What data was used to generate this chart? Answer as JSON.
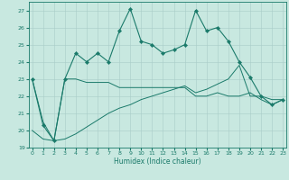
{
  "xlabel": "Humidex (Indice chaleur)",
  "x": [
    0,
    1,
    2,
    3,
    4,
    5,
    6,
    7,
    8,
    9,
    10,
    11,
    12,
    13,
    14,
    15,
    16,
    17,
    18,
    19,
    20,
    21,
    22,
    23
  ],
  "line1": [
    23,
    20.3,
    19.4,
    23,
    24.5,
    24,
    24.5,
    24,
    25.8,
    27.1,
    25.2,
    25,
    24.5,
    24.7,
    25,
    27,
    25.8,
    26,
    25.2,
    24,
    23.1,
    22,
    21.5,
    21.8
  ],
  "line2": [
    23,
    20.5,
    19.4,
    23,
    23,
    22.8,
    22.8,
    22.8,
    22.5,
    22.5,
    22.5,
    22.5,
    22.5,
    22.5,
    22.5,
    22,
    22,
    22.2,
    22,
    22,
    22.2,
    21.8,
    21.5,
    21.8
  ],
  "line3": [
    20,
    19.5,
    19.4,
    19.5,
    19.8,
    20.2,
    20.6,
    21,
    21.3,
    21.5,
    21.8,
    22,
    22.2,
    22.4,
    22.6,
    22.2,
    22.4,
    22.7,
    23,
    23.8,
    22,
    22,
    21.8,
    21.8
  ],
  "line_color": "#1a7a6a",
  "bg_color": "#c8e8e0",
  "grid_color": "#a8ccc8",
  "ylim": [
    19,
    27.5
  ],
  "yticks": [
    19,
    20,
    21,
    22,
    23,
    24,
    25,
    26,
    27
  ],
  "xlim": [
    -0.3,
    23.3
  ],
  "xticks": [
    0,
    1,
    2,
    3,
    4,
    5,
    6,
    7,
    8,
    9,
    10,
    11,
    12,
    13,
    14,
    15,
    16,
    17,
    18,
    19,
    20,
    21,
    22,
    23
  ]
}
